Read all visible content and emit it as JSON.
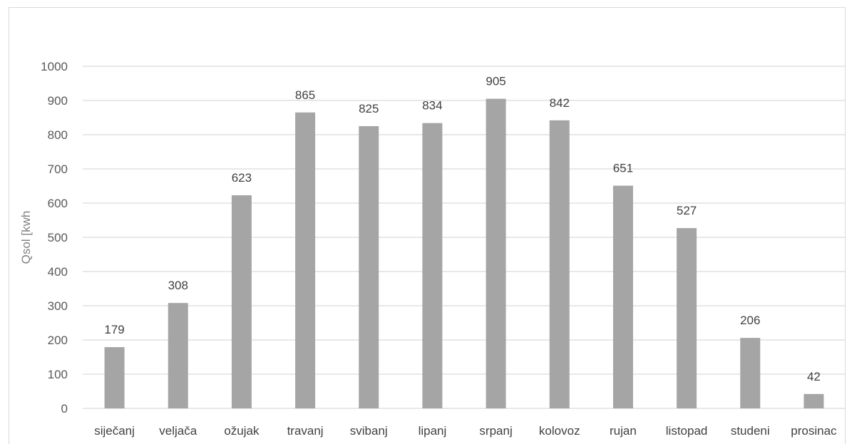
{
  "chart_data": {
    "type": "bar",
    "categories": [
      "siječanj",
      "veljača",
      "ožujak",
      "travanj",
      "svibanj",
      "lipanj",
      "srpanj",
      "kolovoz",
      "rujan",
      "listopad",
      "studeni",
      "prosinac"
    ],
    "values": [
      179,
      308,
      623,
      865,
      825,
      834,
      905,
      842,
      651,
      527,
      206,
      42
    ],
    "xlabel": "",
    "ylabel": "Qsol [kwh",
    "ylim": [
      0,
      1000
    ],
    "yticks": [
      0,
      100,
      200,
      300,
      400,
      500,
      600,
      700,
      800,
      900,
      1000
    ],
    "grid": true,
    "legend": "none",
    "colors": {
      "bar": "#a5a5a5",
      "grid": "#d9d9d9",
      "axis": "#d9d9d9"
    }
  }
}
